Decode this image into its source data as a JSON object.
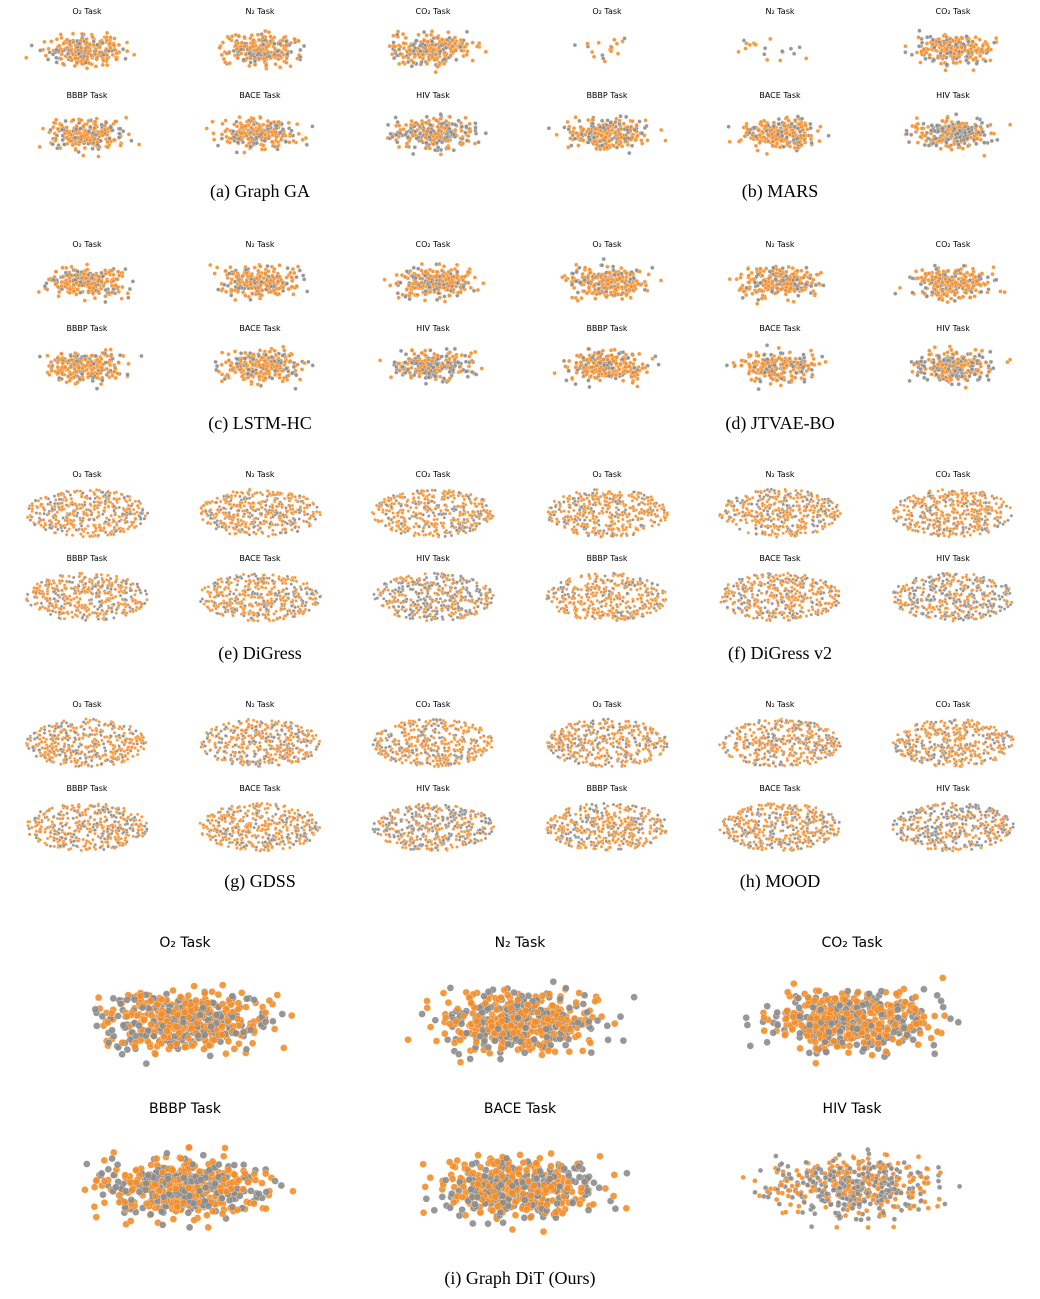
{
  "panels": [
    {
      "caption": "(a) Graph GA",
      "subplots": [
        "O₂ Task",
        "N₂ Task",
        "CO₂ Task",
        "BBBP Task",
        "BACE Task",
        "HIV Task"
      ]
    },
    {
      "caption": "(b) MARS",
      "subplots": [
        "O₂ Task",
        "N₂ Task",
        "CO₂ Task",
        "BBBP Task",
        "BACE Task",
        "HIV Task"
      ]
    },
    {
      "caption": "(c) LSTM-HC",
      "subplots": [
        "O₂ Task",
        "N₂ Task",
        "CO₂ Task",
        "BBBP Task",
        "BACE Task",
        "HIV Task"
      ]
    },
    {
      "caption": "(d) JTVAE-BO",
      "subplots": [
        "O₂ Task",
        "N₂ Task",
        "CO₂ Task",
        "BBBP Task",
        "BACE Task",
        "HIV Task"
      ]
    },
    {
      "caption": "(e) DiGress",
      "subplots": [
        "O₂ Task",
        "N₂ Task",
        "CO₂ Task",
        "BBBP Task",
        "BACE Task",
        "HIV Task"
      ]
    },
    {
      "caption": "(f) DiGress v2",
      "subplots": [
        "O₂ Task",
        "N₂ Task",
        "CO₂ Task",
        "BBBP Task",
        "BACE Task",
        "HIV Task"
      ]
    },
    {
      "caption": "(g) GDSS",
      "subplots": [
        "O₂ Task",
        "N₂ Task",
        "CO₂ Task",
        "BBBP Task",
        "BACE Task",
        "HIV Task"
      ]
    },
    {
      "caption": "(h) MOOD",
      "subplots": [
        "O₂ Task",
        "N₂ Task",
        "CO₂ Task",
        "BBBP Task",
        "BACE Task",
        "HIV Task"
      ]
    },
    {
      "caption": "(i) Graph DiT (Ours)",
      "subplots": [
        "O₂ Task",
        "N₂ Task",
        "CO₂ Task",
        "BBBP Task",
        "BACE Task",
        "HIV Task"
      ]
    }
  ]
}
